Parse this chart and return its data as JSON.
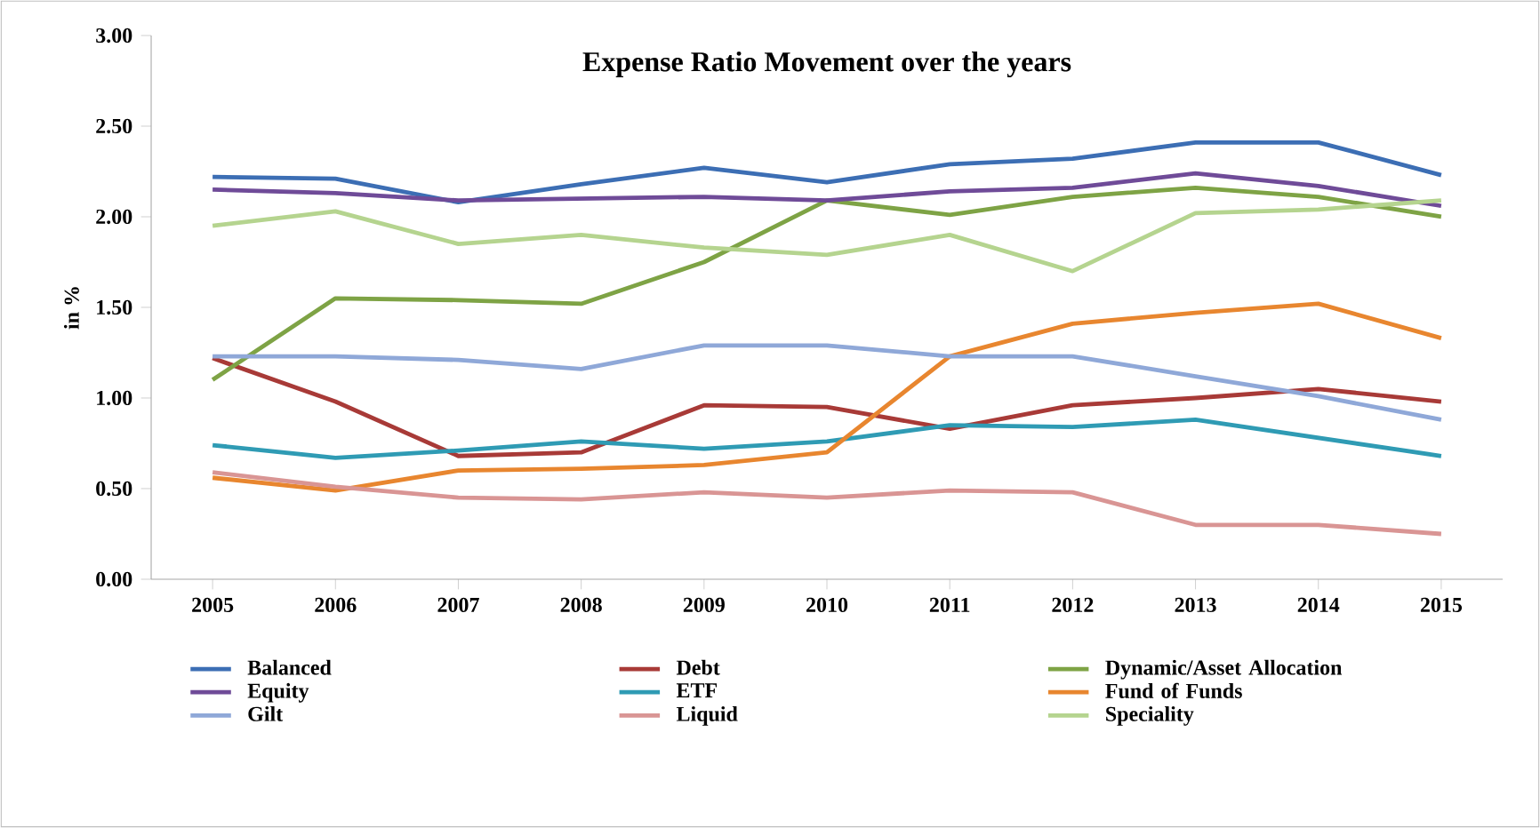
{
  "chart_data": {
    "type": "line",
    "title": "Expense Ratio Movement over the years",
    "ylabel": "in %",
    "categories": [
      "2005",
      "2006",
      "2007",
      "2008",
      "2009",
      "2010",
      "2011",
      "2012",
      "2013",
      "2014",
      "2015"
    ],
    "ylim": [
      0,
      3
    ],
    "yticks": [
      {
        "value": 0,
        "label": "0.00"
      },
      {
        "value": 0.5,
        "label": "0.50"
      },
      {
        "value": 1,
        "label": "1.00"
      },
      {
        "value": 1.5,
        "label": "1.50"
      },
      {
        "value": 2,
        "label": "2.00"
      },
      {
        "value": 2.5,
        "label": "2.50"
      },
      {
        "value": 3,
        "label": "3.00"
      }
    ],
    "legend": "bottom",
    "series": [
      {
        "name": "Balanced",
        "color": "#3c6eb4",
        "values": [
          2.22,
          2.21,
          2.08,
          2.18,
          2.27,
          2.19,
          2.29,
          2.32,
          2.41,
          2.41,
          2.23
        ]
      },
      {
        "name": "Debt",
        "color": "#a83a37",
        "values": [
          1.22,
          0.98,
          0.68,
          0.7,
          0.96,
          0.95,
          0.83,
          0.96,
          1.0,
          1.05,
          0.98
        ]
      },
      {
        "name": "Dynamic/Asset Allocation",
        "color": "#7ea345",
        "values": [
          1.1,
          1.55,
          1.54,
          1.52,
          1.75,
          2.09,
          2.01,
          2.11,
          2.16,
          2.11,
          2.0
        ]
      },
      {
        "name": "Equity",
        "color": "#6f4b98",
        "values": [
          2.15,
          2.13,
          2.09,
          2.1,
          2.11,
          2.09,
          2.14,
          2.16,
          2.24,
          2.17,
          2.06
        ]
      },
      {
        "name": "ETF",
        "color": "#2f9bb4",
        "values": [
          0.74,
          0.67,
          0.71,
          0.76,
          0.72,
          0.76,
          0.85,
          0.84,
          0.88,
          0.78,
          0.68
        ]
      },
      {
        "name": "Fund of Funds",
        "color": "#e8862f",
        "values": [
          0.56,
          0.49,
          0.6,
          0.61,
          0.63,
          0.7,
          1.23,
          1.41,
          1.47,
          1.52,
          1.33
        ]
      },
      {
        "name": "Gilt",
        "color": "#8fa8d8",
        "values": [
          1.23,
          1.23,
          1.21,
          1.16,
          1.29,
          1.29,
          1.23,
          1.23,
          1.12,
          1.01,
          0.88
        ]
      },
      {
        "name": "Liquid",
        "color": "#d99594",
        "values": [
          0.59,
          0.51,
          0.45,
          0.44,
          0.48,
          0.45,
          0.49,
          0.48,
          0.3,
          0.3,
          0.25
        ]
      },
      {
        "name": "Speciality",
        "color": "#b5d48f",
        "values": [
          1.95,
          2.03,
          1.85,
          1.9,
          1.83,
          1.79,
          1.9,
          1.7,
          2.02,
          2.04,
          2.09
        ]
      }
    ]
  }
}
